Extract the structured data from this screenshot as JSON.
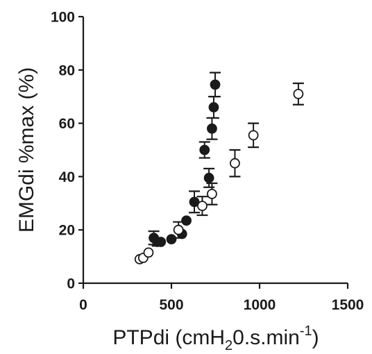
{
  "chart_data": {
    "type": "scatter",
    "xlabel": {
      "main": "PTPdi (cmH",
      "sub": "2",
      "mid": "0.s.min",
      "sup": "-1",
      "end": ")"
    },
    "ylabel": "EMGdi %max (%)",
    "xlim": [
      0,
      1500
    ],
    "ylim": [
      0,
      100
    ],
    "x_ticks": [
      "0",
      "500",
      "1000",
      "1500"
    ],
    "y_ticks": [
      "0",
      "20",
      "40",
      "60",
      "80",
      "100"
    ],
    "grid": false,
    "legend": "none",
    "series": [
      {
        "marker": "filled-circle",
        "color": "#1a1a1a",
        "points": [
          {
            "x": 400,
            "y": 17,
            "err": 2.5
          },
          {
            "x": 420,
            "y": 15.5,
            "err": 1.5
          },
          {
            "x": 440,
            "y": 15.5,
            "err": 0
          },
          {
            "x": 500,
            "y": 16.5,
            "err": 0
          },
          {
            "x": 560,
            "y": 18.5,
            "err": 0
          },
          {
            "x": 585,
            "y": 23.5,
            "err": 0
          },
          {
            "x": 630,
            "y": 30.5,
            "err": 4
          },
          {
            "x": 688,
            "y": 50,
            "err": 3
          },
          {
            "x": 713,
            "y": 39.5,
            "err": 3.5
          },
          {
            "x": 730,
            "y": 58,
            "err": 4
          },
          {
            "x": 740,
            "y": 66,
            "err": 4
          },
          {
            "x": 748,
            "y": 74.5,
            "err": 4.5
          }
        ]
      },
      {
        "marker": "open-circle",
        "color": "#1a1a1a",
        "points": [
          {
            "x": 320,
            "y": 9,
            "err": 0
          },
          {
            "x": 340,
            "y": 9.5,
            "err": 0
          },
          {
            "x": 370,
            "y": 11.5,
            "err": 0
          },
          {
            "x": 540,
            "y": 20,
            "err": 3
          },
          {
            "x": 675,
            "y": 29,
            "err": 3.5
          },
          {
            "x": 730,
            "y": 33.5,
            "err": 4
          },
          {
            "x": 860,
            "y": 45,
            "err": 5
          },
          {
            "x": 965,
            "y": 55.5,
            "err": 4.5
          },
          {
            "x": 1220,
            "y": 71,
            "err": 4
          }
        ]
      }
    ]
  }
}
